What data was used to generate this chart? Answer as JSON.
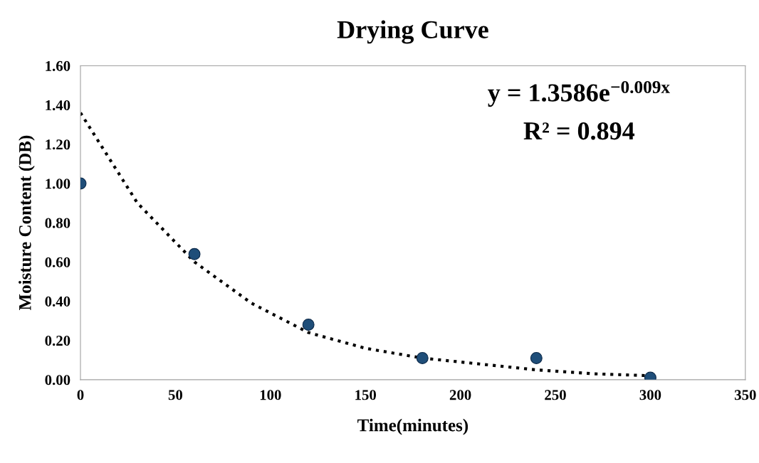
{
  "chart_data": {
    "type": "scatter",
    "title": "Drying Curve",
    "xlabel": "Time(minutes)",
    "ylabel": "Moisture Content (DB)",
    "x": [
      0,
      60,
      120,
      180,
      240,
      300
    ],
    "series": [
      {
        "color": "#1f4e79",
        "marker": "circle",
        "values": [
          1.0,
          0.64,
          0.28,
          0.11,
          0.11,
          0.01
        ]
      },
      {
        "type": "line",
        "color": "#000000",
        "marker": "none",
        "line_style": "dotted",
        "x": [
          0,
          30,
          60,
          90,
          120,
          150,
          180,
          210,
          240,
          270,
          300
        ],
        "values": [
          1.36,
          0.9,
          0.6,
          0.39,
          0.24,
          0.16,
          0.11,
          0.08,
          0.05,
          0.03,
          0.02
        ]
      }
    ],
    "xlim": [
      0,
      350
    ],
    "xticks": [
      0,
      50,
      100,
      150,
      200,
      250,
      300,
      350
    ],
    "ylim": [
      0,
      1.6
    ],
    "yticks": [
      {
        "value": 0,
        "label": "0.00"
      },
      {
        "value": 0.2,
        "label": "0.20"
      },
      {
        "value": 0.4,
        "label": "0.40"
      },
      {
        "value": 0.6,
        "label": "0.60"
      },
      {
        "value": 0.8,
        "label": "0.80"
      },
      {
        "value": 1.0,
        "label": "1.00"
      },
      {
        "value": 1.2,
        "label": "1.20"
      },
      {
        "value": 1.4,
        "label": "1.40"
      },
      {
        "value": 1.6,
        "label": "1.60"
      }
    ],
    "grid": false,
    "legend": false,
    "annotations": [
      "y = 1.3586e$^{−0.009x}$",
      "R² = 0.894"
    ]
  }
}
